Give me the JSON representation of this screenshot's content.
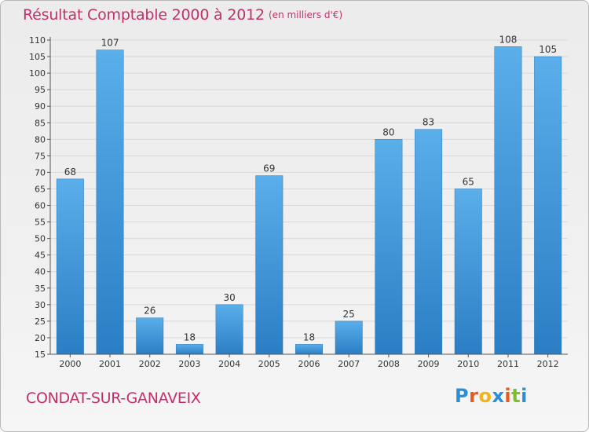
{
  "header": {
    "title": "Résultat Comptable 2000 à 2012",
    "subtitle": "(en milliers d'€)"
  },
  "footer": {
    "location": "CONDAT-SUR-GANAVEIX",
    "logo_text": "Proxiti",
    "logo_colors": [
      "#2a8fd8",
      "#e85a1c",
      "#f2b418",
      "#2a8fd8",
      "#e85a1c",
      "#7bbf2a",
      "#2a8fd8"
    ]
  },
  "colors": {
    "title": "#c0306a",
    "bar_top": "#5aaeea",
    "bar_bottom": "#2b7ec4",
    "axis": "#555555",
    "grid": "#d8d8d8",
    "label": "#333333"
  },
  "chart_data": {
    "type": "bar",
    "title": "Résultat Comptable 2000 à 2012",
    "subtitle": "(en milliers d'€)",
    "categories": [
      "2000",
      "2001",
      "2002",
      "2003",
      "2004",
      "2005",
      "2006",
      "2007",
      "2008",
      "2009",
      "2010",
      "2011",
      "2012"
    ],
    "values": [
      68,
      107,
      26,
      18,
      30,
      69,
      18,
      25,
      80,
      83,
      65,
      108,
      105
    ],
    "ylim": [
      15,
      110
    ],
    "yticks": [
      15,
      20,
      25,
      30,
      35,
      40,
      45,
      50,
      55,
      60,
      65,
      70,
      75,
      80,
      85,
      90,
      95,
      100,
      105,
      110
    ],
    "grid": true,
    "data_labels": true
  }
}
